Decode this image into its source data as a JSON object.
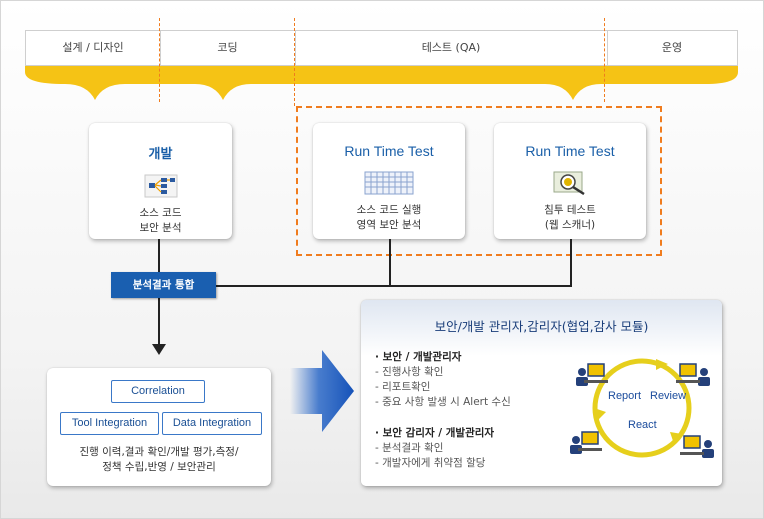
{
  "phases": [
    "설계 / 디자인",
    "코딩",
    "테스트 (QA)",
    "운영"
  ],
  "dev_card": {
    "title": "개발",
    "icon": "code-flow-icon",
    "desc_line1": "소스 코드",
    "desc_line2": "보안 분석"
  },
  "rtt1_card": {
    "title": "Run Time Test",
    "icon": "grid-table-icon",
    "desc_line1": "소스 코드 실행",
    "desc_line2": "영역 보안 분석"
  },
  "rtt2_card": {
    "title": "Run Time Test",
    "icon": "magnifier-scan-icon",
    "desc_line1": "침투 테스트",
    "desc_line2": "(웹 스캐너)"
  },
  "merge_label": "분석결과 통합",
  "integration_box": {
    "correlation": "Correlation",
    "tool_integration": "Tool Integration",
    "data_integration": "Data Integration",
    "desc_line1": "진행 이력,결과 확인/개발 평가,측정/",
    "desc_line2": "정책 수립,반영 / 보안관리"
  },
  "panel": {
    "title": "보안/개발 관리자,감리자(협업,감사 모듈)",
    "group1_head": "· 보안 / 개발관리자",
    "group1_items": [
      "- 진행사항 확인",
      "- 리포트확인",
      "- 중요 사항 발생 시 Alert 수신"
    ],
    "group2_head": "· 보안 감리자 / 개발관리자",
    "group2_items": [
      "- 분석결과 확인",
      "- 개발자에게 취약점 할당"
    ],
    "cycle": {
      "report": "Report",
      "review": "Review",
      "react": "React"
    }
  },
  "colors": {
    "accent_orange": "#f07c1e",
    "brace_yellow": "#f5c315",
    "title_blue": "#1a5fa8",
    "label_blue": "#1a5fb0",
    "arrow_blue": "#1e5fc4"
  }
}
